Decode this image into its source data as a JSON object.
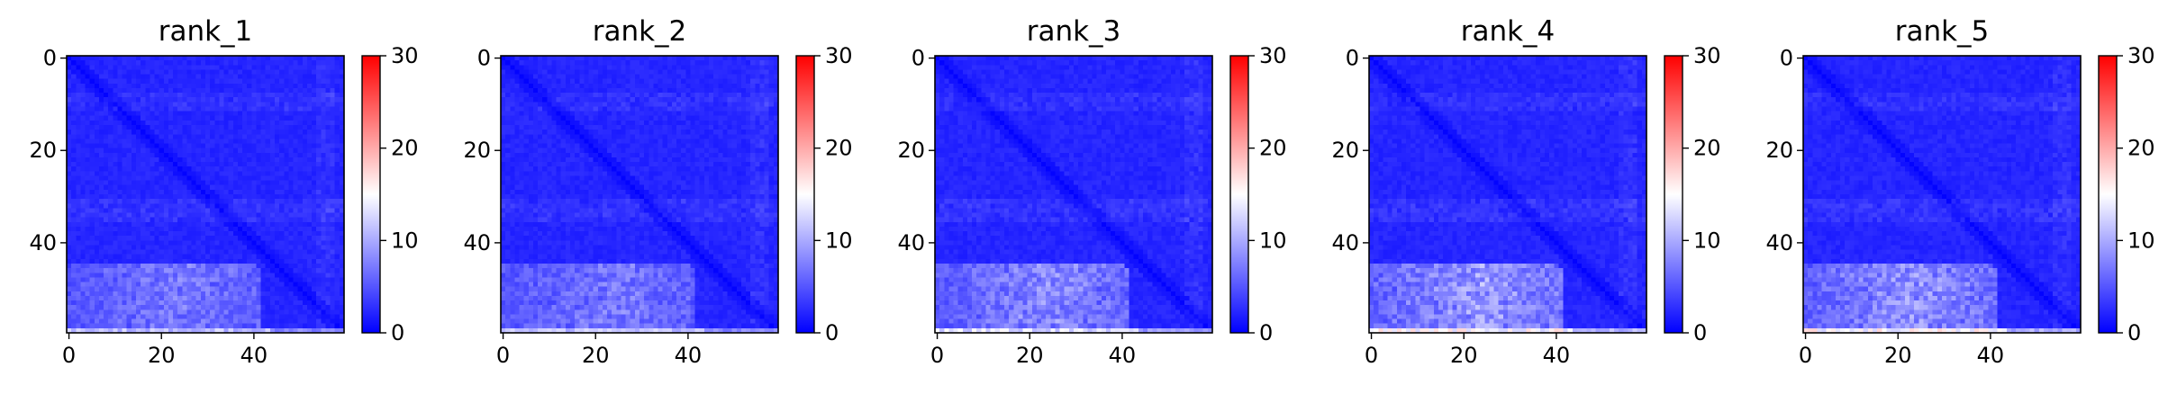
{
  "chart_data": [
    {
      "type": "heatmap",
      "title": "rank_1",
      "grid_size": 60,
      "xticks": [
        0,
        20,
        40
      ],
      "yticks": [
        0,
        20,
        40
      ],
      "colorbar": {
        "min": 0,
        "max": 30,
        "ticks": [
          0,
          10,
          20,
          30
        ],
        "colormap": "bwr"
      },
      "values_description": "values mostly about 2, diagonal about 0, a few lighter bands near rows 10 and 33, a lighter block for rows 46-58, and the last row about 12"
    },
    {
      "type": "heatmap",
      "title": "rank_2",
      "grid_size": 60,
      "xticks": [
        0,
        20,
        40
      ],
      "yticks": [
        0,
        20,
        40
      ],
      "colorbar": {
        "min": 0,
        "max": 30,
        "ticks": [
          0,
          10,
          20,
          30
        ],
        "colormap": "bwr"
      },
      "values_description": "values mostly about 2, diagonal about 0, a few lighter bands near rows 10 and 33, a lighter block for rows 46-58, and the last row about 12"
    },
    {
      "type": "heatmap",
      "title": "rank_3",
      "grid_size": 60,
      "xticks": [
        0,
        20,
        40
      ],
      "yticks": [
        0,
        20,
        40
      ],
      "colorbar": {
        "min": 0,
        "max": 30,
        "ticks": [
          0,
          10,
          20,
          30
        ],
        "colormap": "bwr"
      },
      "values_description": "values mostly about 2, diagonal about 0, a few lighter bands, a lighter block for rows 46-58, and the last row about 14"
    },
    {
      "type": "heatmap",
      "title": "rank_4",
      "grid_size": 60,
      "xticks": [
        0,
        20,
        40
      ],
      "yticks": [
        0,
        20,
        40
      ],
      "colorbar": {
        "min": 0,
        "max": 30,
        "ticks": [
          0,
          10,
          20,
          30
        ],
        "colormap": "bwr"
      },
      "values_description": "values mostly about 2, diagonal about 0, a lighter block for rows 46-58 reaching about 10, and the last row about 16"
    },
    {
      "type": "heatmap",
      "title": "rank_5",
      "grid_size": 60,
      "xticks": [
        0,
        20,
        40
      ],
      "yticks": [
        0,
        20,
        40
      ],
      "colorbar": {
        "min": 0,
        "max": 30,
        "ticks": [
          0,
          10,
          20,
          30
        ],
        "colormap": "bwr"
      },
      "values_description": "values mostly about 2, diagonal about 0, a lighter block for rows 46-58 reaching about 9, and the last row about 16"
    }
  ]
}
